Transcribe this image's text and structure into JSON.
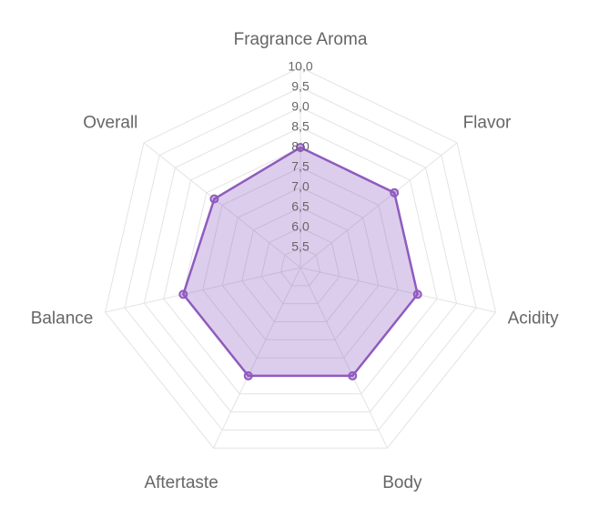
{
  "chart_data": {
    "type": "radar",
    "categories": [
      "Fragrance Aroma",
      "Flavor",
      "Acidity",
      "Body",
      "Aftertaste",
      "Balance",
      "Overall"
    ],
    "values": [
      8.0,
      8.0,
      8.0,
      8.0,
      8.0,
      8.0,
      7.75
    ],
    "color": "#8e5bbf",
    "ylim": [
      5,
      10
    ],
    "yticks": [
      {
        "value": 5.5,
        "label": "5,5"
      },
      {
        "value": 6,
        "label": "6,0"
      },
      {
        "value": 6.5,
        "label": "6,5"
      },
      {
        "value": 7,
        "label": "7,0"
      },
      {
        "value": 7.5,
        "label": "7,5"
      },
      {
        "value": 8,
        "label": "8,0"
      },
      {
        "value": 8.5,
        "label": "8,5"
      },
      {
        "value": 9,
        "label": "9,0"
      },
      {
        "value": 9.5,
        "label": "9,5"
      },
      {
        "value": 10,
        "label": "10,0"
      }
    ],
    "grid": true
  }
}
